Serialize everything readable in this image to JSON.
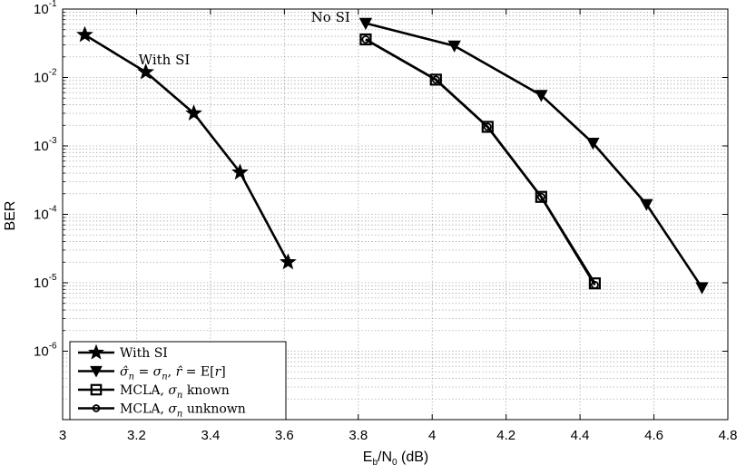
{
  "chart_data": {
    "type": "line",
    "xlabel": "E_b/N_0 (dB)",
    "xlabel_parts": {
      "base": "E",
      "sub1": "b",
      "mid": "/N",
      "sub2": "0",
      "tail": " (dB)"
    },
    "ylabel": "BER",
    "xlim": [
      3,
      4.8
    ],
    "ylim": [
      1e-07,
      0.1
    ],
    "yscale": "log",
    "grid": true,
    "legend_position": "bottom-left",
    "x_ticks": [
      "3",
      "3.2",
      "3.4",
      "3.6",
      "3.8",
      "4",
      "4.2",
      "4.4",
      "4.6",
      "4.8"
    ],
    "y_ticks": [
      {
        "base": "10",
        "exp": "-6"
      },
      {
        "base": "10",
        "exp": "-5"
      },
      {
        "base": "10",
        "exp": "-4"
      },
      {
        "base": "10",
        "exp": "-3"
      },
      {
        "base": "10",
        "exp": "-2"
      },
      {
        "base": "10",
        "exp": "-1"
      }
    ],
    "annotations": [
      {
        "text": "With SI",
        "x": 3.275,
        "y": 0.0155
      },
      {
        "text": "No SI",
        "x": 3.725,
        "y": 0.065
      }
    ],
    "series": [
      {
        "name": "With SI",
        "marker": "star",
        "x": [
          3.06,
          3.225,
          3.355,
          3.48,
          3.61
        ],
        "y": [
          0.042,
          0.012,
          0.003,
          0.00041,
          2e-05
        ]
      },
      {
        "name": "σ̂_n = σ_n, r̂ = E[r]",
        "marker": "triangle-down",
        "x": [
          3.82,
          4.06,
          4.295,
          4.435,
          4.58,
          4.73
        ],
        "y": [
          0.062,
          0.029,
          0.0055,
          0.0011,
          0.00014,
          8.5e-06
        ]
      },
      {
        "name": "MCLA, σ_n known",
        "marker": "square",
        "x": [
          3.82,
          4.01,
          4.15,
          4.295,
          4.44
        ],
        "y": [
          0.036,
          0.0093,
          0.0019,
          0.00018,
          9.8e-06
        ]
      },
      {
        "name": "MCLA, σ_n unknown",
        "marker": "circle",
        "x": [
          3.82,
          4.01,
          4.15,
          4.295,
          4.44
        ],
        "y": [
          0.036,
          0.0093,
          0.0019,
          0.00018,
          9.3e-06
        ]
      }
    ],
    "legend_items": [
      {
        "parts": [
          {
            "t": "With SI"
          }
        ]
      },
      {
        "parts": [
          {
            "t": "σ̂",
            "i": true
          },
          {
            "t": "n",
            "s": true
          },
          {
            "t": " = "
          },
          {
            "t": "σ",
            "i": true
          },
          {
            "t": "n",
            "s": true
          },
          {
            "t": ", "
          },
          {
            "t": "r̂",
            "i": true
          },
          {
            "t": " = E["
          },
          {
            "t": "r",
            "i": true
          },
          {
            "t": "]"
          }
        ]
      },
      {
        "parts": [
          {
            "t": "MCLA, "
          },
          {
            "t": "σ",
            "i": true
          },
          {
            "t": "n",
            "s": true
          },
          {
            "t": " known"
          }
        ]
      },
      {
        "parts": [
          {
            "t": "MCLA, "
          },
          {
            "t": "σ",
            "i": true
          },
          {
            "t": "n",
            "s": true
          },
          {
            "t": " unknown"
          }
        ]
      }
    ]
  }
}
